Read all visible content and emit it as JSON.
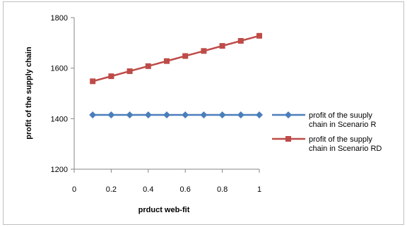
{
  "chart_data": {
    "type": "line",
    "xlabel": "prduct web-fit",
    "ylabel": "profit of the supply chain",
    "x": [
      0.1,
      0.2,
      0.3,
      0.4,
      0.5,
      0.6,
      0.7,
      0.8,
      0.9,
      1.0
    ],
    "xlim": [
      0,
      1
    ],
    "ylim": [
      1200,
      1800
    ],
    "xticks": [
      "0",
      "0.2",
      "0.4",
      "0.6",
      "0.8",
      "1"
    ],
    "yticks": [
      "1200",
      "1400",
      "1600",
      "1800"
    ],
    "grid": false,
    "legend_position": "right",
    "series": [
      {
        "name_lines": [
          "profit of the suuply",
          "chain in Scenario R"
        ],
        "color": "#4a7ebb",
        "marker": "diamond",
        "values": [
          1415,
          1415,
          1415,
          1415,
          1415,
          1415,
          1415,
          1415,
          1415,
          1415
        ]
      },
      {
        "name_lines": [
          "profit of the supply",
          "chain in Scenario RD"
        ],
        "color": "#be4b48",
        "marker": "square",
        "values": [
          1548,
          1568,
          1588,
          1608,
          1628,
          1648,
          1668,
          1688,
          1708,
          1728
        ]
      }
    ]
  }
}
